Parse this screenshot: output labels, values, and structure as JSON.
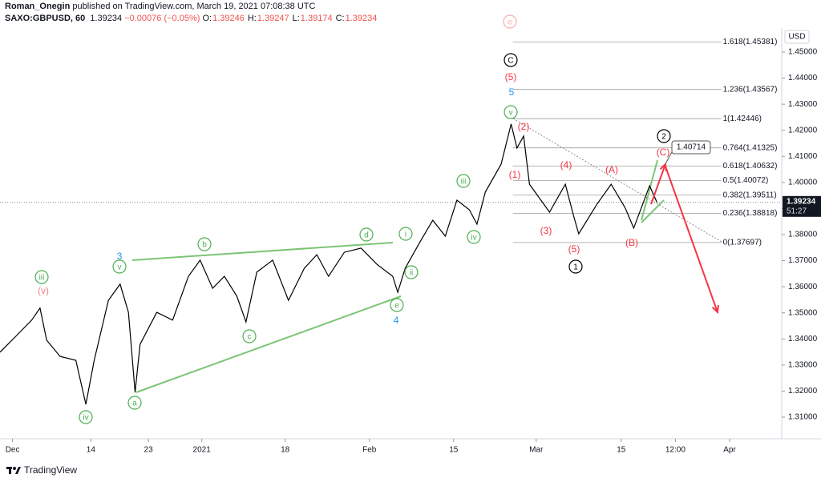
{
  "header": {
    "author": "Roman_Onegin",
    "published": "published on TradingView.com, March 19, 2021 07:08:38 UTC",
    "symbol": "SAXO:GBPUSD, 60",
    "last": "1.39234",
    "change": "−0.00076 (−0.05%)",
    "ohlc": [
      {
        "label": "O:",
        "value": "1.39246"
      },
      {
        "label": "H:",
        "value": "1.39247"
      },
      {
        "label": "L:",
        "value": "1.39174"
      },
      {
        "label": "C:",
        "value": "1.39234"
      }
    ],
    "currency": "USD"
  },
  "footer": {
    "brand": "TradingView"
  },
  "chart_data": {
    "type": "line",
    "series": [
      {
        "name": "GBPUSD",
        "color": "#000000",
        "x": [
          0,
          1.9,
          3.8,
          4.8,
          5.6,
          7.2,
          9.1,
          10.3,
          11.3,
          13.0,
          14.4,
          15.4,
          16.2,
          16.8,
          18.8,
          20.7,
          22.6,
          24.0,
          25.5,
          26.9,
          28.4,
          29.5,
          30.8,
          32.7,
          34.6,
          36.5,
          38.0,
          39.4,
          41.3,
          43.3,
          45.2,
          47.1,
          47.7,
          48.6,
          50.5,
          51.9,
          53.4,
          54.8,
          56.3,
          57.2,
          58.2,
          60.1,
          61.3,
          62.0,
          62.8,
          63.5,
          65.9,
          67.8,
          68.8,
          69.4,
          71.6,
          73.3,
          75.0,
          76.0,
          77.9,
          78.8
        ],
        "values": [
          1.3349,
          1.341,
          1.3472,
          1.3518,
          1.3395,
          1.3333,
          1.3318,
          1.3149,
          1.3318,
          1.3548,
          1.361,
          1.3502,
          1.3195,
          1.3379,
          1.3502,
          1.3472,
          1.364,
          1.3702,
          1.3594,
          1.364,
          1.3564,
          1.3465,
          1.3656,
          1.3702,
          1.3548,
          1.3671,
          1.3723,
          1.364,
          1.3732,
          1.3748,
          1.3686,
          1.364,
          1.3579,
          1.3671,
          1.3779,
          1.3855,
          1.3794,
          1.3932,
          1.3895,
          1.384,
          1.3963,
          1.407,
          1.4224,
          1.4132,
          1.4178,
          1.3993,
          1.3886,
          1.3993,
          1.3871,
          1.3803,
          1.3917,
          1.3993,
          1.3901,
          1.3825,
          1.3987,
          1.3923
        ]
      }
    ],
    "last_price": {
      "value": 1.39234,
      "label": "1.39234"
    },
    "countdown": "51:27",
    "xlim": [
      0,
      93.75
    ],
    "ylim": [
      1.30171,
      1.45921
    ],
    "xticks": [
      {
        "value": 1.5,
        "label": "Dec"
      },
      {
        "value": 10.9,
        "label": "14"
      },
      {
        "value": 17.8,
        "label": "23"
      },
      {
        "value": 24.2,
        "label": "2021"
      },
      {
        "value": 34.2,
        "label": "18"
      },
      {
        "value": 44.3,
        "label": "Feb"
      },
      {
        "value": 54.4,
        "label": "15"
      },
      {
        "value": 64.3,
        "label": "Mar"
      },
      {
        "value": 74.5,
        "label": "15"
      },
      {
        "value": 81,
        "label": "12:00"
      },
      {
        "value": 87.5,
        "label": "Apr"
      }
    ],
    "yticks": [
      {
        "value": 1.31,
        "label": "1.31000"
      },
      {
        "value": 1.32,
        "label": "1.32000"
      },
      {
        "value": 1.33,
        "label": "1.33000"
      },
      {
        "value": 1.34,
        "label": "1.34000"
      },
      {
        "value": 1.35,
        "label": "1.35000"
      },
      {
        "value": 1.36,
        "label": "1.36000"
      },
      {
        "value": 1.37,
        "label": "1.37000"
      },
      {
        "value": 1.38,
        "label": "1.38000"
      },
      {
        "value": 1.39,
        "label": "1.39000"
      },
      {
        "value": 1.4,
        "label": "1.40000"
      },
      {
        "value": 1.41,
        "label": "1.41000"
      },
      {
        "value": 1.42,
        "label": "1.42000"
      },
      {
        "value": 1.43,
        "label": "1.43000"
      },
      {
        "value": 1.44,
        "label": "1.44000"
      },
      {
        "value": 1.45,
        "label": "1.45000"
      }
    ],
    "fib_levels": [
      {
        "value": 1.45381,
        "label": "1.618(1.45381)"
      },
      {
        "value": 1.43567,
        "label": "1.236(1.43567)"
      },
      {
        "value": 1.42446,
        "label": "1(1.42446)"
      },
      {
        "value": 1.41325,
        "label": "0.764(1.41325)"
      },
      {
        "value": 1.40632,
        "label": "0.618(1.40632)"
      },
      {
        "value": 1.40072,
        "label": "0.5(1.40072)"
      },
      {
        "value": 1.39511,
        "label": "0.382(1.39511)"
      },
      {
        "value": 1.38818,
        "label": "0.236(1.38818)"
      },
      {
        "value": 1.37697,
        "label": "0(1.37697)"
      }
    ],
    "target_label": {
      "value": 1.40714,
      "label": "1.40714"
    },
    "annotations": [
      {
        "text": "iii",
        "color": "#4caf50",
        "circled": true
      },
      {
        "text": "v",
        "color": "#4caf50",
        "circled": true
      },
      {
        "text": "b",
        "color": "#4caf50",
        "circled": true
      },
      {
        "text": "d",
        "color": "#4caf50",
        "circled": true
      },
      {
        "text": "i",
        "color": "#4caf50",
        "circled": true
      },
      {
        "text": "ii",
        "color": "#4caf50",
        "circled": true
      },
      {
        "text": "e",
        "color": "#4caf50",
        "circled": true
      },
      {
        "text": "c",
        "color": "#4caf50",
        "circled": true
      },
      {
        "text": "a",
        "color": "#4caf50",
        "circled": true
      },
      {
        "text": "iv",
        "color": "#4caf50",
        "circled": true
      },
      {
        "text": "iii",
        "color": "#4caf50",
        "circled": true
      },
      {
        "text": "iv",
        "color": "#4caf50",
        "circled": true
      },
      {
        "text": "v",
        "color": "#4caf50",
        "circled": true
      },
      {
        "text": "(v)",
        "color": "#f08080",
        "circled": false
      },
      {
        "text": "(5)",
        "color": "#f23645",
        "circled": false
      },
      {
        "text": "(2)",
        "color": "#f23645",
        "circled": false
      },
      {
        "text": "(1)",
        "color": "#f23645",
        "circled": false
      },
      {
        "text": "(4)",
        "color": "#f23645",
        "circled": false
      },
      {
        "text": "(3)",
        "color": "#f23645",
        "circled": false
      },
      {
        "text": "(5)",
        "color": "#f23645",
        "circled": false
      },
      {
        "text": "(A)",
        "color": "#f23645",
        "circled": false
      },
      {
        "text": "(B)",
        "color": "#f23645",
        "circled": false
      },
      {
        "text": "(C)",
        "color": "#f23645",
        "circled": false
      },
      {
        "text": "3",
        "color": "#2196f3",
        "circled": false
      },
      {
        "text": "4",
        "color": "#2196f3",
        "circled": false
      },
      {
        "text": "5",
        "color": "#2196f3",
        "circled": false
      },
      {
        "text": "C",
        "color": "#000000",
        "circled": true
      },
      {
        "text": "1",
        "color": "#000000",
        "circled": true
      },
      {
        "text": "2",
        "color": "#000000",
        "circled": true
      },
      {
        "text": "e",
        "color": "#f4b0b0",
        "circled": true
      }
    ]
  }
}
